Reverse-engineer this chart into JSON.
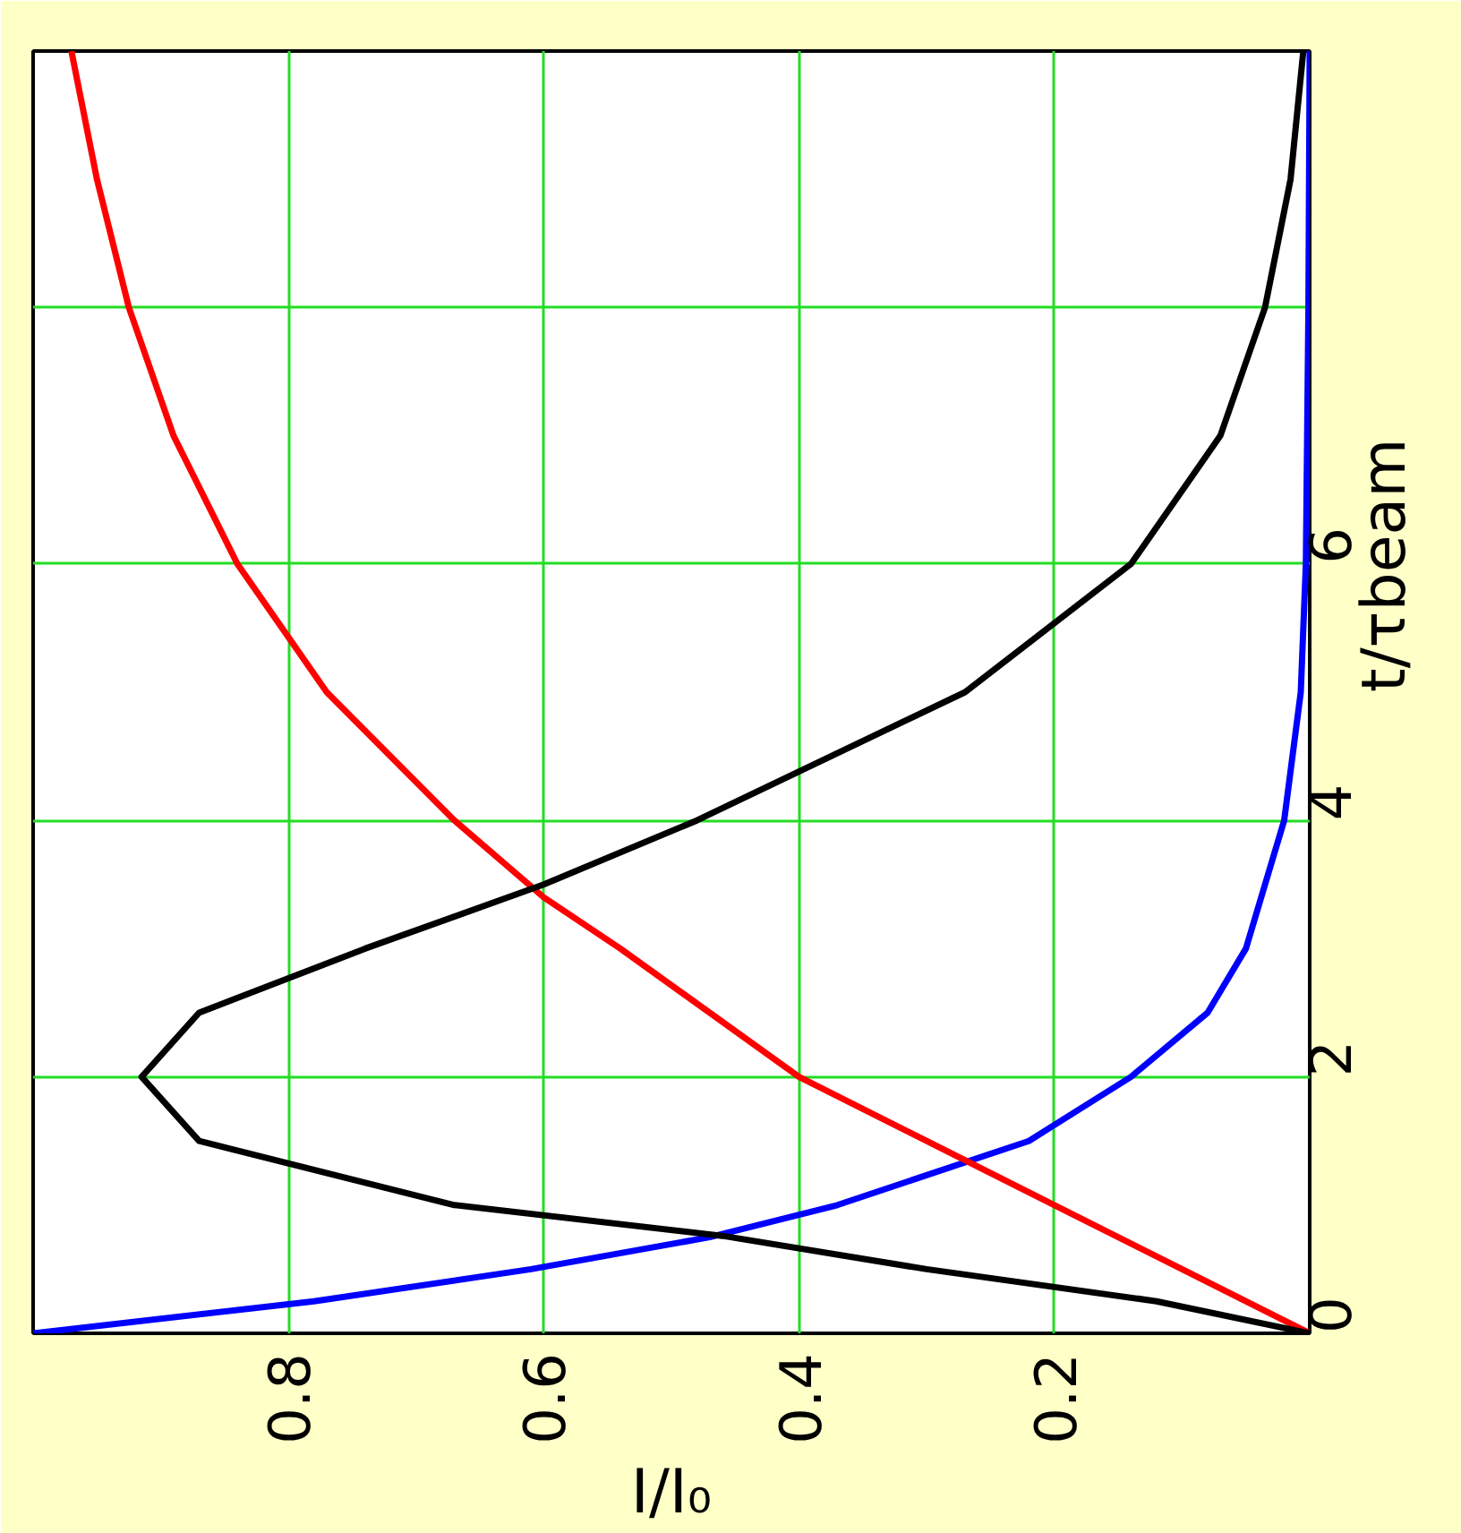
{
  "chart_data": {
    "type": "line",
    "xlabel": "I/I₀",
    "ylabel": "t/τbeam",
    "xlim": [
      1,
      0
    ],
    "ylim": [
      0,
      10
    ],
    "yticks": [
      0,
      2,
      4,
      6,
      {
        "value": 8,
        "label": null
      }
    ],
    "xticks": [
      0.2,
      0.4,
      0.6,
      0.8
    ],
    "grid": true,
    "series": [
      {
        "color": "#0000ff",
        "values": [
          0,
          0.25,
          0.5,
          0.75,
          1,
          1.5,
          2,
          2.5,
          3,
          4,
          5,
          6,
          8,
          10
        ],
        "x": [
          1,
          0.78,
          0.61,
          0.47,
          0.37,
          0.22,
          0.14,
          0.08,
          0.05,
          0.02,
          0.007,
          0.003,
          0.001,
          0
        ]
      },
      {
        "color": "#ff0000",
        "values": [
          0,
          0.5,
          1,
          2,
          3,
          3.4,
          4,
          5,
          6,
          7,
          8,
          9,
          10
        ],
        "x": [
          0,
          0.1,
          0.2,
          0.4,
          0.54,
          0.6,
          0.67,
          0.77,
          0.84,
          0.89,
          0.925,
          0.95,
          0.97
        ]
      },
      {
        "color": "#000000",
        "values": [
          0,
          0.25,
          0.5,
          0.76,
          1,
          1.5,
          2,
          2.5,
          3,
          3.5,
          4,
          5,
          6,
          7,
          8,
          9,
          10
        ],
        "x": [
          0,
          0.12,
          0.3,
          0.46,
          0.67,
          0.87,
          0.915,
          0.87,
          0.74,
          0.6,
          0.48,
          0.27,
          0.14,
          0.07,
          0.035,
          0.015,
          0.005
        ]
      }
    ]
  }
}
